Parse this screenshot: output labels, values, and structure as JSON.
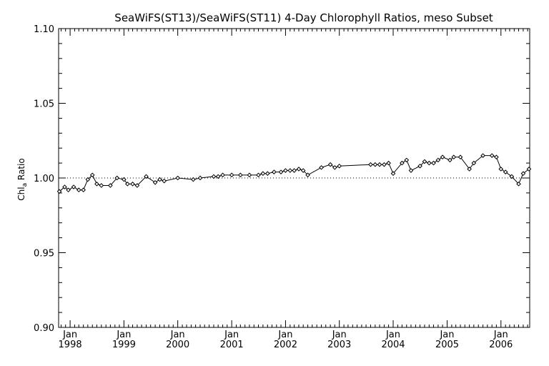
{
  "chart_data": {
    "type": "line",
    "title": "SeaWiFS(ST13)/SeaWiFS(ST11) 4-Day Chlorophyll Ratios, meso Subset",
    "ylabel_main": "Chl",
    "ylabel_sub": "a",
    "ylabel_rest": " Ratio",
    "xlabel": "",
    "ylim": [
      0.9,
      1.1
    ],
    "xlim": [
      "1997-10-15",
      "2006-07-15"
    ],
    "y_ticks": [
      "0.90",
      "0.95",
      "1.00",
      "1.05",
      "1.10"
    ],
    "x_ticks": [
      {
        "month": "Jan",
        "year": "1998",
        "date": "1998-01-01"
      },
      {
        "month": "Jan",
        "year": "1999",
        "date": "1999-01-01"
      },
      {
        "month": "Jan",
        "year": "2000",
        "date": "2000-01-01"
      },
      {
        "month": "Jan",
        "year": "2001",
        "date": "2001-01-01"
      },
      {
        "month": "Jan",
        "year": "2002",
        "date": "2002-01-01"
      },
      {
        "month": "Jan",
        "year": "2003",
        "date": "2003-01-01"
      },
      {
        "month": "Jan",
        "year": "2004",
        "date": "2004-01-01"
      },
      {
        "month": "Jan",
        "year": "2005",
        "date": "2005-01-01"
      },
      {
        "month": "Jan",
        "year": "2006",
        "date": "2006-01-01"
      }
    ],
    "reference_line": {
      "y": 1.0,
      "style": "dotted"
    },
    "grid": false,
    "series": [
      {
        "marker": "diamond",
        "points": [
          [
            "1997-10-20",
            0.991
          ],
          [
            "1997-11-25",
            0.994
          ],
          [
            "1997-12-20",
            0.992
          ],
          [
            "1998-01-25",
            0.994
          ],
          [
            "1998-03-01",
            0.992
          ],
          [
            "1998-04-01",
            0.992
          ],
          [
            "1998-05-01",
            0.999
          ],
          [
            "1998-06-01",
            1.002
          ],
          [
            "1998-07-01",
            0.996
          ],
          [
            "1998-08-01",
            0.995
          ],
          [
            "1998-10-01",
            0.995
          ],
          [
            "1998-11-15",
            1.0
          ],
          [
            "1999-01-01",
            0.999
          ],
          [
            "1999-01-25",
            0.996
          ],
          [
            "1999-03-01",
            0.996
          ],
          [
            "1999-04-01",
            0.995
          ],
          [
            "1999-06-01",
            1.001
          ],
          [
            "1999-08-01",
            0.997
          ],
          [
            "1999-09-01",
            0.999
          ],
          [
            "1999-10-01",
            0.998
          ],
          [
            "2000-01-01",
            1.0
          ],
          [
            "2000-04-15",
            0.999
          ],
          [
            "2000-06-01",
            1.0
          ],
          [
            "2000-09-01",
            1.001
          ],
          [
            "2000-10-01",
            1.001
          ],
          [
            "2000-11-01",
            1.002
          ],
          [
            "2001-01-01",
            1.002
          ],
          [
            "2001-03-01",
            1.002
          ],
          [
            "2001-05-01",
            1.002
          ],
          [
            "2001-07-01",
            1.002
          ],
          [
            "2001-08-01",
            1.003
          ],
          [
            "2001-09-01",
            1.003
          ],
          [
            "2001-10-15",
            1.004
          ],
          [
            "2001-12-01",
            1.004
          ],
          [
            "2002-01-01",
            1.005
          ],
          [
            "2002-02-01",
            1.005
          ],
          [
            "2002-03-01",
            1.005
          ],
          [
            "2002-04-01",
            1.006
          ],
          [
            "2002-05-01",
            1.005
          ],
          [
            "2002-06-01",
            1.002
          ],
          [
            "2002-09-01",
            1.007
          ],
          [
            "2002-11-01",
            1.009
          ],
          [
            "2002-12-01",
            1.007
          ],
          [
            "2003-01-01",
            1.008
          ],
          [
            "2003-08-01",
            1.009
          ],
          [
            "2003-09-01",
            1.009
          ],
          [
            "2003-10-01",
            1.009
          ],
          [
            "2003-11-01",
            1.009
          ],
          [
            "2003-12-01",
            1.01
          ],
          [
            "2004-01-01",
            1.003
          ],
          [
            "2004-03-01",
            1.01
          ],
          [
            "2004-04-01",
            1.012
          ],
          [
            "2004-05-01",
            1.005
          ],
          [
            "2004-07-01",
            1.008
          ],
          [
            "2004-08-01",
            1.011
          ],
          [
            "2004-09-01",
            1.01
          ],
          [
            "2004-10-01",
            1.01
          ],
          [
            "2004-11-01",
            1.012
          ],
          [
            "2004-12-01",
            1.014
          ],
          [
            "2005-01-20",
            1.012
          ],
          [
            "2005-02-15",
            1.014
          ],
          [
            "2005-04-01",
            1.014
          ],
          [
            "2005-06-01",
            1.006
          ],
          [
            "2005-07-01",
            1.01
          ],
          [
            "2005-09-01",
            1.015
          ],
          [
            "2005-11-01",
            1.015
          ],
          [
            "2005-12-01",
            1.014
          ],
          [
            "2006-01-01",
            1.006
          ],
          [
            "2006-02-01",
            1.004
          ],
          [
            "2006-03-15",
            1.001
          ],
          [
            "2006-05-01",
            0.996
          ],
          [
            "2006-06-01",
            1.003
          ],
          [
            "2006-07-10",
            1.006
          ]
        ]
      }
    ]
  }
}
